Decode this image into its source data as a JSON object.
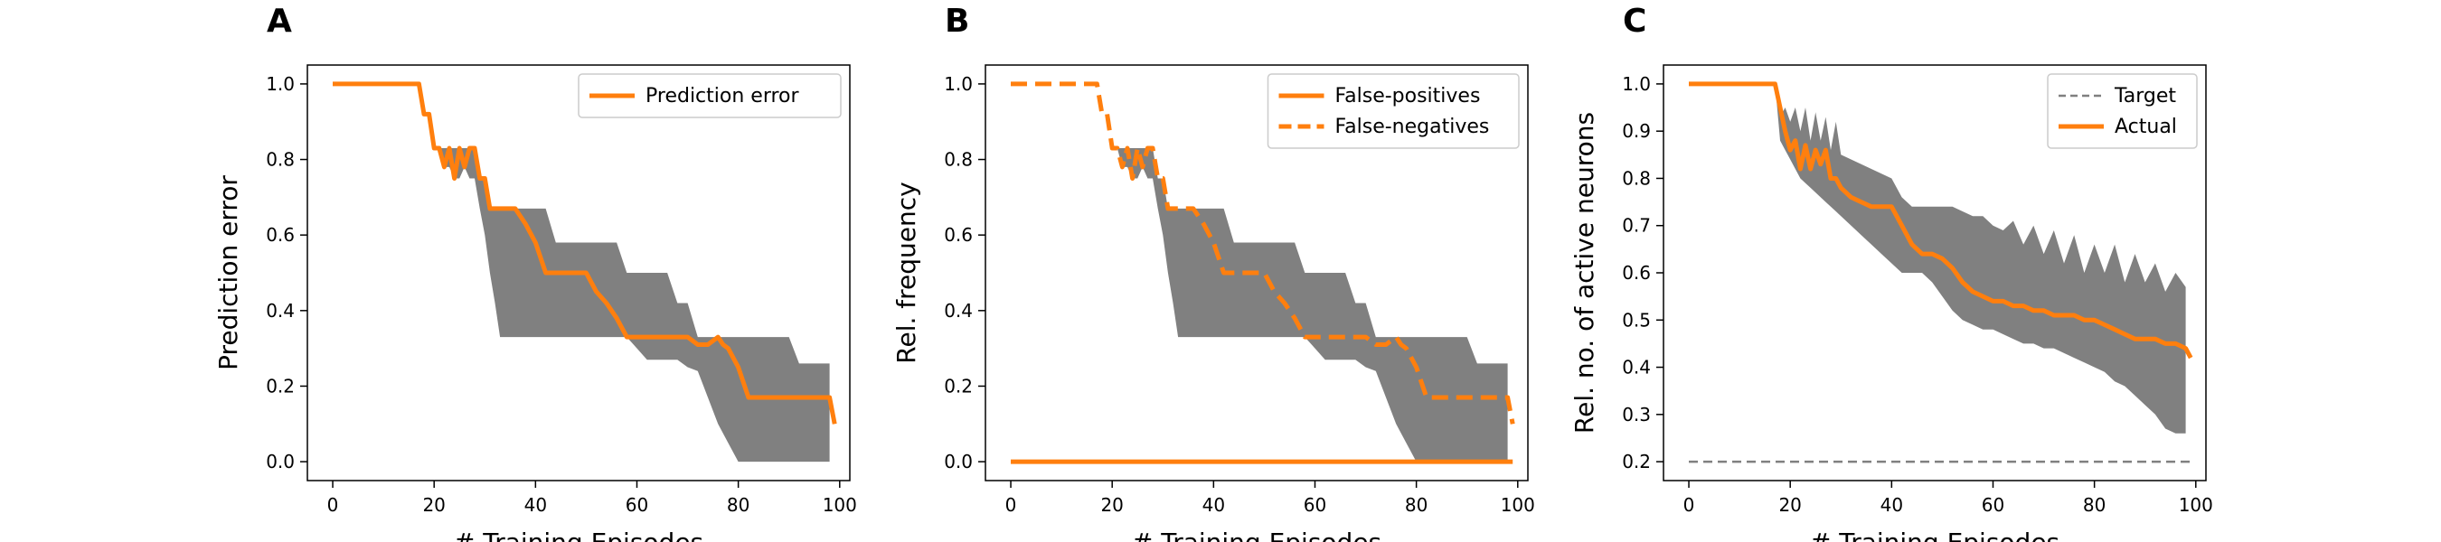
{
  "colors": {
    "actual": "#ff7f0e",
    "band": "#808080",
    "target": "#808080",
    "frame": "#000000"
  },
  "chart_data": [
    {
      "type": "line",
      "panel_label": "A",
      "xlabel": "# Training Episodes",
      "ylabel": "Prediction error",
      "xlim": [
        -5,
        102
      ],
      "ylim": [
        -0.05,
        1.05
      ],
      "xticks": [
        0,
        20,
        40,
        60,
        80,
        100
      ],
      "yticks": [
        0.0,
        0.2,
        0.4,
        0.6,
        0.8,
        1.0
      ],
      "ytick_labels": [
        "0.0",
        "0.2",
        "0.4",
        "0.6",
        "0.8",
        "1.0"
      ],
      "legend": "top-right",
      "band": {
        "x": [
          0,
          17,
          18,
          19,
          20,
          21,
          22,
          23,
          24,
          25,
          26,
          27,
          28,
          29,
          30,
          31,
          32,
          33,
          34,
          36,
          40,
          42,
          44,
          46,
          48,
          50,
          52,
          54,
          56,
          58,
          60,
          62,
          64,
          66,
          68,
          70,
          72,
          74,
          76,
          78,
          80,
          82,
          84,
          86,
          88,
          90,
          92,
          94,
          96,
          98
        ],
        "upper": [
          1.0,
          1.0,
          0.92,
          0.92,
          0.83,
          0.83,
          0.83,
          0.83,
          0.83,
          0.83,
          0.83,
          0.83,
          0.83,
          0.75,
          0.75,
          0.67,
          0.67,
          0.67,
          0.67,
          0.67,
          0.67,
          0.67,
          0.58,
          0.58,
          0.58,
          0.58,
          0.58,
          0.58,
          0.58,
          0.5,
          0.5,
          0.5,
          0.5,
          0.5,
          0.42,
          0.42,
          0.33,
          0.33,
          0.33,
          0.33,
          0.33,
          0.33,
          0.33,
          0.33,
          0.33,
          0.33,
          0.26,
          0.26,
          0.26,
          0.26
        ],
        "lower": [
          1.0,
          1.0,
          0.92,
          0.92,
          0.83,
          0.83,
          0.78,
          0.78,
          0.75,
          0.75,
          0.78,
          0.75,
          0.75,
          0.67,
          0.6,
          0.5,
          0.42,
          0.33,
          0.33,
          0.33,
          0.33,
          0.33,
          0.33,
          0.33,
          0.33,
          0.33,
          0.33,
          0.33,
          0.33,
          0.33,
          0.3,
          0.27,
          0.27,
          0.27,
          0.27,
          0.25,
          0.24,
          0.17,
          0.1,
          0.05,
          0.0,
          0.0,
          0.0,
          0.0,
          0.0,
          0.0,
          0.0,
          0.0,
          0.0,
          0.0
        ]
      },
      "series": [
        {
          "name": "Prediction error",
          "style": "solid",
          "x": [
            0,
            17,
            18,
            19,
            20,
            21,
            22,
            23,
            24,
            25,
            26,
            27,
            28,
            29,
            30,
            31,
            32,
            34,
            36,
            38,
            40,
            42,
            44,
            46,
            48,
            50,
            52,
            54,
            56,
            58,
            60,
            62,
            64,
            66,
            68,
            70,
            72,
            74,
            76,
            77,
            78,
            80,
            82,
            84,
            86,
            88,
            90,
            92,
            94,
            96,
            98,
            99
          ],
          "y": [
            1.0,
            1.0,
            0.92,
            0.92,
            0.83,
            0.83,
            0.78,
            0.83,
            0.75,
            0.83,
            0.78,
            0.83,
            0.83,
            0.75,
            0.75,
            0.67,
            0.67,
            0.67,
            0.67,
            0.63,
            0.58,
            0.5,
            0.5,
            0.5,
            0.5,
            0.5,
            0.45,
            0.42,
            0.38,
            0.33,
            0.33,
            0.33,
            0.33,
            0.33,
            0.33,
            0.33,
            0.31,
            0.31,
            0.33,
            0.31,
            0.3,
            0.25,
            0.17,
            0.17,
            0.17,
            0.17,
            0.17,
            0.17,
            0.17,
            0.17,
            0.17,
            0.1
          ]
        }
      ]
    },
    {
      "type": "line",
      "panel_label": "B",
      "xlabel": "# Training Episodes",
      "ylabel": "Rel. frequency",
      "xlim": [
        -5,
        102
      ],
      "ylim": [
        -0.05,
        1.05
      ],
      "xticks": [
        0,
        20,
        40,
        60,
        80,
        100
      ],
      "yticks": [
        0.0,
        0.2,
        0.4,
        0.6,
        0.8,
        1.0
      ],
      "ytick_labels": [
        "0.0",
        "0.2",
        "0.4",
        "0.6",
        "0.8",
        "1.0"
      ],
      "legend": "top-right",
      "band": {
        "x": [
          0,
          17,
          18,
          19,
          20,
          21,
          22,
          23,
          24,
          25,
          26,
          27,
          28,
          29,
          30,
          31,
          32,
          33,
          34,
          36,
          40,
          42,
          44,
          46,
          48,
          50,
          52,
          54,
          56,
          58,
          60,
          62,
          64,
          66,
          68,
          70,
          72,
          74,
          76,
          78,
          80,
          82,
          84,
          86,
          88,
          90,
          92,
          94,
          96,
          98
        ],
        "upper": [
          1.0,
          1.0,
          0.92,
          0.92,
          0.83,
          0.83,
          0.83,
          0.83,
          0.83,
          0.83,
          0.83,
          0.83,
          0.83,
          0.75,
          0.75,
          0.67,
          0.67,
          0.67,
          0.67,
          0.67,
          0.67,
          0.67,
          0.58,
          0.58,
          0.58,
          0.58,
          0.58,
          0.58,
          0.58,
          0.5,
          0.5,
          0.5,
          0.5,
          0.5,
          0.42,
          0.42,
          0.33,
          0.33,
          0.33,
          0.33,
          0.33,
          0.33,
          0.33,
          0.33,
          0.33,
          0.33,
          0.26,
          0.26,
          0.26,
          0.26
        ],
        "lower": [
          1.0,
          1.0,
          0.92,
          0.92,
          0.83,
          0.83,
          0.78,
          0.78,
          0.75,
          0.75,
          0.78,
          0.75,
          0.75,
          0.67,
          0.6,
          0.5,
          0.42,
          0.33,
          0.33,
          0.33,
          0.33,
          0.33,
          0.33,
          0.33,
          0.33,
          0.33,
          0.33,
          0.33,
          0.33,
          0.33,
          0.3,
          0.27,
          0.27,
          0.27,
          0.27,
          0.25,
          0.24,
          0.17,
          0.1,
          0.05,
          0.0,
          0.0,
          0.0,
          0.0,
          0.0,
          0.0,
          0.0,
          0.0,
          0.0,
          0.0
        ]
      },
      "series": [
        {
          "name": "False-positives",
          "style": "solid",
          "x": [
            0,
            99
          ],
          "y": [
            0.0,
            0.0
          ]
        },
        {
          "name": "False-negatives",
          "style": "dashed",
          "x": [
            0,
            17,
            18,
            19,
            20,
            21,
            22,
            23,
            24,
            25,
            26,
            27,
            28,
            29,
            30,
            31,
            32,
            34,
            36,
            38,
            40,
            42,
            44,
            46,
            48,
            50,
            52,
            54,
            56,
            58,
            60,
            62,
            64,
            66,
            68,
            70,
            72,
            74,
            76,
            77,
            78,
            80,
            82,
            84,
            86,
            88,
            90,
            92,
            94,
            96,
            98,
            99
          ],
          "y": [
            1.0,
            1.0,
            0.92,
            0.92,
            0.83,
            0.83,
            0.78,
            0.83,
            0.75,
            0.83,
            0.78,
            0.83,
            0.83,
            0.75,
            0.75,
            0.67,
            0.67,
            0.67,
            0.67,
            0.63,
            0.58,
            0.5,
            0.5,
            0.5,
            0.5,
            0.5,
            0.45,
            0.42,
            0.38,
            0.33,
            0.33,
            0.33,
            0.33,
            0.33,
            0.33,
            0.33,
            0.31,
            0.31,
            0.33,
            0.31,
            0.3,
            0.25,
            0.17,
            0.17,
            0.17,
            0.17,
            0.17,
            0.17,
            0.17,
            0.17,
            0.17,
            0.1
          ]
        }
      ]
    },
    {
      "type": "line",
      "panel_label": "C",
      "xlabel": "# Training Episodes",
      "ylabel": "Rel. no. of active neurons",
      "xlim": [
        -5,
        102
      ],
      "ylim": [
        0.16,
        1.04
      ],
      "xticks": [
        0,
        20,
        40,
        60,
        80,
        100
      ],
      "yticks": [
        0.2,
        0.3,
        0.4,
        0.5,
        0.6,
        0.7,
        0.8,
        0.9,
        1.0
      ],
      "ytick_labels": [
        "0.2",
        "0.3",
        "0.4",
        "0.5",
        "0.6",
        "0.7",
        "0.8",
        "0.9",
        "1.0"
      ],
      "legend": "top-right",
      "band": {
        "x": [
          0,
          17,
          18,
          19,
          20,
          21,
          22,
          23,
          24,
          25,
          26,
          27,
          28,
          29,
          30,
          32,
          34,
          36,
          38,
          40,
          42,
          44,
          46,
          48,
          50,
          52,
          54,
          56,
          58,
          60,
          62,
          64,
          66,
          68,
          70,
          72,
          74,
          76,
          78,
          80,
          82,
          84,
          86,
          88,
          90,
          92,
          94,
          96,
          98
        ],
        "upper": [
          1.0,
          1.0,
          0.93,
          0.95,
          0.92,
          0.95,
          0.9,
          0.95,
          0.88,
          0.94,
          0.88,
          0.93,
          0.86,
          0.92,
          0.85,
          0.84,
          0.83,
          0.82,
          0.81,
          0.8,
          0.76,
          0.74,
          0.74,
          0.74,
          0.74,
          0.74,
          0.73,
          0.72,
          0.72,
          0.7,
          0.69,
          0.71,
          0.66,
          0.7,
          0.64,
          0.69,
          0.62,
          0.68,
          0.6,
          0.66,
          0.6,
          0.66,
          0.58,
          0.64,
          0.58,
          0.62,
          0.56,
          0.6,
          0.57
        ],
        "lower": [
          1.0,
          1.0,
          0.88,
          0.86,
          0.84,
          0.82,
          0.8,
          0.79,
          0.78,
          0.77,
          0.76,
          0.75,
          0.74,
          0.73,
          0.72,
          0.7,
          0.68,
          0.66,
          0.64,
          0.62,
          0.6,
          0.6,
          0.6,
          0.58,
          0.55,
          0.52,
          0.5,
          0.49,
          0.48,
          0.48,
          0.47,
          0.46,
          0.45,
          0.45,
          0.44,
          0.44,
          0.43,
          0.42,
          0.41,
          0.4,
          0.39,
          0.37,
          0.36,
          0.34,
          0.32,
          0.3,
          0.27,
          0.26,
          0.26
        ]
      },
      "series": [
        {
          "name": "Target",
          "style": "dashed-thin",
          "x": [
            0,
            99
          ],
          "y": [
            0.2,
            0.2
          ]
        },
        {
          "name": "Actual",
          "style": "solid",
          "x": [
            0,
            17,
            18,
            19,
            20,
            21,
            22,
            23,
            24,
            25,
            26,
            27,
            28,
            29,
            30,
            32,
            34,
            36,
            38,
            40,
            42,
            44,
            46,
            48,
            50,
            52,
            54,
            56,
            58,
            60,
            62,
            64,
            66,
            68,
            70,
            72,
            74,
            76,
            78,
            80,
            82,
            84,
            86,
            88,
            90,
            92,
            94,
            96,
            98,
            99
          ],
          "y": [
            1.0,
            1.0,
            0.95,
            0.9,
            0.86,
            0.88,
            0.82,
            0.87,
            0.82,
            0.86,
            0.83,
            0.86,
            0.8,
            0.8,
            0.78,
            0.76,
            0.75,
            0.74,
            0.74,
            0.74,
            0.7,
            0.66,
            0.64,
            0.64,
            0.63,
            0.61,
            0.58,
            0.56,
            0.55,
            0.54,
            0.54,
            0.53,
            0.53,
            0.52,
            0.52,
            0.51,
            0.51,
            0.51,
            0.5,
            0.5,
            0.49,
            0.48,
            0.47,
            0.46,
            0.46,
            0.46,
            0.45,
            0.45,
            0.44,
            0.42
          ]
        }
      ]
    }
  ]
}
